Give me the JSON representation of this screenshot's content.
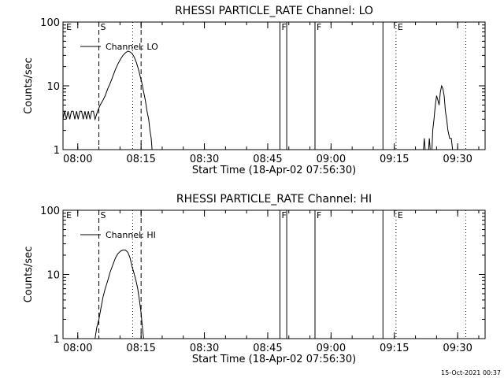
{
  "footer": {
    "timestamp": "15-Oct-2021 00:37"
  },
  "style": {
    "line_color": "#000000",
    "background": "#ffffff"
  },
  "chart_data": [
    {
      "type": "line",
      "title": "RHESSI PARTICLE_RATE Channel: LO",
      "xlabel": "Start Time (18-Apr-02 07:56:30)",
      "ylabel": "Counts/sec",
      "x_unit": "minutes after 07:56:30",
      "xlim": [
        0,
        100
      ],
      "ylim": [
        1,
        100
      ],
      "yscale": "log",
      "x_ticks": [
        {
          "t": 3.5,
          "label": "08:00"
        },
        {
          "t": 18.5,
          "label": "08:15"
        },
        {
          "t": 33.5,
          "label": "08:30"
        },
        {
          "t": 48.5,
          "label": "08:45"
        },
        {
          "t": 63.5,
          "label": "09:00"
        },
        {
          "t": 78.5,
          "label": "09:15"
        },
        {
          "t": 93.5,
          "label": "09:30"
        }
      ],
      "y_ticks": [
        {
          "v": 1,
          "label": "1"
        },
        {
          "v": 10,
          "label": "10"
        },
        {
          "v": 100,
          "label": "100"
        }
      ],
      "legend": {
        "text": "Channel: LO",
        "placement": "top-left"
      },
      "markers": [
        {
          "t": 0.4,
          "style": "none",
          "label": "E"
        },
        {
          "t": 8.5,
          "style": "dashed",
          "label": "S"
        },
        {
          "t": 16.5,
          "style": "dotted",
          "label": ""
        },
        {
          "t": 18.5,
          "style": "dashed",
          "label": ""
        },
        {
          "t": 51.4,
          "style": "solid",
          "label": "F"
        },
        {
          "t": 53.0,
          "style": "solid",
          "label": ""
        },
        {
          "t": 59.7,
          "style": "solid",
          "label": "F"
        },
        {
          "t": 75.8,
          "style": "solid",
          "label": ""
        },
        {
          "t": 78.9,
          "style": "dotted",
          "label": "E"
        },
        {
          "t": 95.4,
          "style": "dotted",
          "label": ""
        }
      ],
      "series": [
        {
          "name": "Channel: LO",
          "segments": [
            [
              [
                0,
                3
              ],
              [
                0.4,
                4
              ],
              [
                0.8,
                3
              ],
              [
                1.2,
                4
              ],
              [
                1.6,
                3
              ],
              [
                2,
                4
              ],
              [
                2.4,
                4
              ],
              [
                2.8,
                3
              ],
              [
                3.2,
                4
              ],
              [
                3.6,
                3
              ],
              [
                4,
                4
              ],
              [
                4.4,
                4
              ],
              [
                4.8,
                3
              ],
              [
                5.2,
                4
              ],
              [
                5.6,
                3
              ],
              [
                6,
                4
              ],
              [
                6.4,
                3
              ],
              [
                6.8,
                4
              ],
              [
                7.2,
                4
              ],
              [
                7.6,
                3
              ],
              [
                8.2,
                4
              ],
              [
                8.8,
                5
              ],
              [
                9.5,
                6
              ],
              [
                10,
                7
              ],
              [
                10.6,
                9
              ],
              [
                11.2,
                11
              ],
              [
                11.8,
                14
              ],
              [
                12.4,
                18
              ],
              [
                13,
                22
              ],
              [
                13.6,
                26
              ],
              [
                14.2,
                30
              ],
              [
                14.8,
                33
              ],
              [
                15.4,
                35
              ],
              [
                15.9,
                34
              ],
              [
                16.4,
                32
              ],
              [
                16.9,
                28
              ],
              [
                17.4,
                23
              ],
              [
                17.9,
                18
              ],
              [
                18.3,
                14
              ],
              [
                18.7,
                11
              ],
              [
                19.1,
                8
              ],
              [
                19.5,
                6
              ],
              [
                19.9,
                4
              ],
              [
                20.3,
                3
              ],
              [
                20.6,
                2
              ],
              [
                20.9,
                1.5
              ],
              [
                21.1,
                1
              ]
            ]
          ]
        },
        {
          "name": "Channel: LO",
          "segments": [
            [
              [
                85.4,
                1
              ],
              [
                85.6,
                1.5
              ],
              [
                85.8,
                1
              ]
            ],
            [
              [
                86.6,
                1
              ],
              [
                86.8,
                1.5
              ],
              [
                87.0,
                1
              ]
            ],
            [
              [
                87.4,
                1
              ],
              [
                87.6,
                2
              ],
              [
                87.9,
                3
              ],
              [
                88.2,
                5
              ],
              [
                88.5,
                7
              ],
              [
                88.8,
                6
              ],
              [
                89.1,
                5
              ],
              [
                89.4,
                8
              ],
              [
                89.7,
                10
              ],
              [
                90,
                9
              ],
              [
                90.3,
                7
              ],
              [
                90.6,
                4
              ],
              [
                90.9,
                3
              ],
              [
                91.2,
                2
              ],
              [
                91.6,
                1.5
              ],
              [
                92,
                1.5
              ],
              [
                92.3,
                1
              ]
            ]
          ]
        }
      ]
    },
    {
      "type": "line",
      "title": "RHESSI PARTICLE_RATE Channel: HI",
      "xlabel": "Start Time (18-Apr-02 07:56:30)",
      "ylabel": "Counts/sec",
      "x_unit": "minutes after 07:56:30",
      "xlim": [
        0,
        100
      ],
      "ylim": [
        1,
        100
      ],
      "yscale": "log",
      "x_ticks": [
        {
          "t": 3.5,
          "label": "08:00"
        },
        {
          "t": 18.5,
          "label": "08:15"
        },
        {
          "t": 33.5,
          "label": "08:30"
        },
        {
          "t": 48.5,
          "label": "08:45"
        },
        {
          "t": 63.5,
          "label": "09:00"
        },
        {
          "t": 78.5,
          "label": "09:15"
        },
        {
          "t": 93.5,
          "label": "09:30"
        }
      ],
      "y_ticks": [
        {
          "v": 1,
          "label": "1"
        },
        {
          "v": 10,
          "label": "10"
        },
        {
          "v": 100,
          "label": "100"
        }
      ],
      "legend": {
        "text": "Channel: HI",
        "placement": "top-left"
      },
      "markers": [
        {
          "t": 0.4,
          "style": "none",
          "label": "E"
        },
        {
          "t": 8.5,
          "style": "dashed",
          "label": "S"
        },
        {
          "t": 16.5,
          "style": "dotted",
          "label": ""
        },
        {
          "t": 18.5,
          "style": "dashed",
          "label": ""
        },
        {
          "t": 51.4,
          "style": "solid",
          "label": "F"
        },
        {
          "t": 53.0,
          "style": "solid",
          "label": ""
        },
        {
          "t": 59.7,
          "style": "solid",
          "label": "F"
        },
        {
          "t": 75.8,
          "style": "solid",
          "label": ""
        },
        {
          "t": 78.9,
          "style": "dotted",
          "label": "E"
        },
        {
          "t": 95.4,
          "style": "dotted",
          "label": ""
        }
      ],
      "series": [
        {
          "name": "Channel: HI",
          "segments": [
            [
              [
                7.6,
                1
              ],
              [
                8.0,
                1.5
              ],
              [
                8.5,
                2
              ],
              [
                9.0,
                3
              ],
              [
                9.5,
                4.5
              ],
              [
                10,
                6
              ],
              [
                10.6,
                8
              ],
              [
                11.2,
                11
              ],
              [
                11.8,
                14
              ],
              [
                12.4,
                18
              ],
              [
                13,
                21
              ],
              [
                13.6,
                23
              ],
              [
                14.2,
                24
              ],
              [
                14.8,
                24
              ],
              [
                15.4,
                22
              ],
              [
                15.9,
                18
              ],
              [
                16.4,
                13
              ],
              [
                16.9,
                10
              ],
              [
                17.3,
                8
              ],
              [
                17.7,
                6
              ],
              [
                18.1,
                4
              ],
              [
                18.5,
                2.5
              ],
              [
                18.8,
                1.5
              ],
              [
                19.1,
                1
              ]
            ]
          ]
        }
      ]
    }
  ]
}
